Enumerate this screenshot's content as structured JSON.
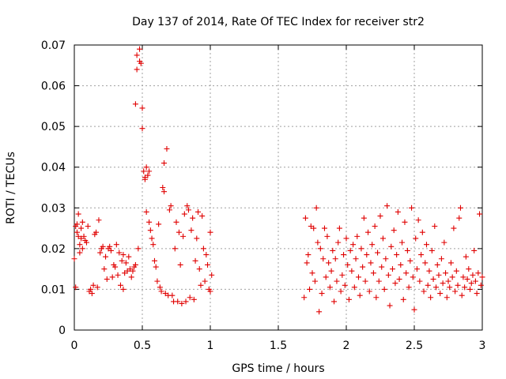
{
  "chart_data": {
    "type": "scatter",
    "title": "Day 137 of 2014, Rate Of TEC Index for receiver str2",
    "xlabel": "GPS time / hours",
    "ylabel": "ROTI / TECUs",
    "xlim": [
      0,
      3
    ],
    "ylim": [
      0,
      0.07
    ],
    "x_ticks": [
      0,
      0.5,
      1,
      1.5,
      2,
      2.5,
      3
    ],
    "x_tick_labels": [
      "0",
      "0.5",
      "1",
      "1.5",
      "2",
      "2.5",
      "3"
    ],
    "y_ticks": [
      0,
      0.01,
      0.02,
      0.03,
      0.04,
      0.05,
      0.06,
      0.07
    ],
    "y_tick_labels": [
      "0",
      "0.01",
      "0.02",
      "0.03",
      "0.04",
      "0.05",
      "0.06",
      "0.07"
    ],
    "grid": true,
    "marker": "plus",
    "color": "#e00000",
    "series": [
      {
        "name": "str2",
        "points": [
          [
            0.0,
            0.0175
          ],
          [
            0.01,
            0.0105
          ],
          [
            0.01,
            0.0255
          ],
          [
            0.02,
            0.026
          ],
          [
            0.02,
            0.024
          ],
          [
            0.03,
            0.0285
          ],
          [
            0.03,
            0.023
          ],
          [
            0.04,
            0.019
          ],
          [
            0.04,
            0.021
          ],
          [
            0.05,
            0.025
          ],
          [
            0.05,
            0.0225
          ],
          [
            0.06,
            0.02
          ],
          [
            0.06,
            0.0265
          ],
          [
            0.07,
            0.023
          ],
          [
            0.08,
            0.022
          ],
          [
            0.09,
            0.0215
          ],
          [
            0.1,
            0.0255
          ],
          [
            0.11,
            0.0095
          ],
          [
            0.12,
            0.01
          ],
          [
            0.13,
            0.009
          ],
          [
            0.14,
            0.011
          ],
          [
            0.15,
            0.0235
          ],
          [
            0.16,
            0.024
          ],
          [
            0.17,
            0.0105
          ],
          [
            0.18,
            0.027
          ],
          [
            0.19,
            0.019
          ],
          [
            0.2,
            0.02
          ],
          [
            0.21,
            0.0205
          ],
          [
            0.22,
            0.015
          ],
          [
            0.23,
            0.018
          ],
          [
            0.24,
            0.0125
          ],
          [
            0.25,
            0.02
          ],
          [
            0.26,
            0.0205
          ],
          [
            0.27,
            0.0195
          ],
          [
            0.28,
            0.013
          ],
          [
            0.29,
            0.016
          ],
          [
            0.3,
            0.0155
          ],
          [
            0.31,
            0.021
          ],
          [
            0.32,
            0.0135
          ],
          [
            0.33,
            0.019
          ],
          [
            0.34,
            0.011
          ],
          [
            0.35,
            0.017
          ],
          [
            0.36,
            0.0185
          ],
          [
            0.36,
            0.01
          ],
          [
            0.37,
            0.014
          ],
          [
            0.38,
            0.0165
          ],
          [
            0.39,
            0.0145
          ],
          [
            0.4,
            0.018
          ],
          [
            0.41,
            0.015
          ],
          [
            0.42,
            0.013
          ],
          [
            0.43,
            0.0145
          ],
          [
            0.44,
            0.0155
          ],
          [
            0.45,
            0.016
          ],
          [
            0.45,
            0.0555
          ],
          [
            0.46,
            0.0675
          ],
          [
            0.46,
            0.064
          ],
          [
            0.47,
            0.02
          ],
          [
            0.48,
            0.066
          ],
          [
            0.48,
            0.069
          ],
          [
            0.49,
            0.0655
          ],
          [
            0.5,
            0.0545
          ],
          [
            0.5,
            0.0495
          ],
          [
            0.51,
            0.039
          ],
          [
            0.52,
            0.037
          ],
          [
            0.52,
            0.0375
          ],
          [
            0.53,
            0.04
          ],
          [
            0.54,
            0.038
          ],
          [
            0.55,
            0.039
          ],
          [
            0.53,
            0.029
          ],
          [
            0.55,
            0.0265
          ],
          [
            0.56,
            0.0245
          ],
          [
            0.57,
            0.0225
          ],
          [
            0.58,
            0.021
          ],
          [
            0.59,
            0.017
          ],
          [
            0.6,
            0.0155
          ],
          [
            0.61,
            0.012
          ],
          [
            0.62,
            0.026
          ],
          [
            0.63,
            0.0105
          ],
          [
            0.64,
            0.0095
          ],
          [
            0.65,
            0.035
          ],
          [
            0.66,
            0.034
          ],
          [
            0.66,
            0.041
          ],
          [
            0.67,
            0.009
          ],
          [
            0.68,
            0.0445
          ],
          [
            0.69,
            0.0085
          ],
          [
            0.7,
            0.0295
          ],
          [
            0.71,
            0.0305
          ],
          [
            0.72,
            0.0085
          ],
          [
            0.73,
            0.007
          ],
          [
            0.74,
            0.02
          ],
          [
            0.75,
            0.0265
          ],
          [
            0.76,
            0.007
          ],
          [
            0.77,
            0.024
          ],
          [
            0.78,
            0.016
          ],
          [
            0.79,
            0.0065
          ],
          [
            0.8,
            0.023
          ],
          [
            0.81,
            0.0285
          ],
          [
            0.82,
            0.007
          ],
          [
            0.83,
            0.0305
          ],
          [
            0.84,
            0.0295
          ],
          [
            0.85,
            0.008
          ],
          [
            0.86,
            0.0245
          ],
          [
            0.87,
            0.0275
          ],
          [
            0.88,
            0.0075
          ],
          [
            0.89,
            0.017
          ],
          [
            0.9,
            0.0225
          ],
          [
            0.91,
            0.029
          ],
          [
            0.92,
            0.015
          ],
          [
            0.93,
            0.011
          ],
          [
            0.94,
            0.028
          ],
          [
            0.95,
            0.02
          ],
          [
            0.96,
            0.012
          ],
          [
            0.97,
            0.0185
          ],
          [
            0.98,
            0.016
          ],
          [
            0.99,
            0.01
          ],
          [
            1.0,
            0.024
          ],
          [
            1.0,
            0.0095
          ],
          [
            1.01,
            0.0135
          ],
          [
            1.69,
            0.008
          ],
          [
            1.7,
            0.0275
          ],
          [
            1.71,
            0.0165
          ],
          [
            1.72,
            0.0185
          ],
          [
            1.73,
            0.01
          ],
          [
            1.74,
            0.0255
          ],
          [
            1.75,
            0.014
          ],
          [
            1.76,
            0.025
          ],
          [
            1.77,
            0.012
          ],
          [
            1.78,
            0.03
          ],
          [
            1.79,
            0.0215
          ],
          [
            1.8,
            0.0045
          ],
          [
            1.81,
            0.02
          ],
          [
            1.82,
            0.009
          ],
          [
            1.83,
            0.0175
          ],
          [
            1.84,
            0.025
          ],
          [
            1.85,
            0.013
          ],
          [
            1.86,
            0.023
          ],
          [
            1.87,
            0.0165
          ],
          [
            1.88,
            0.0105
          ],
          [
            1.89,
            0.0145
          ],
          [
            1.9,
            0.0195
          ],
          [
            1.91,
            0.007
          ],
          [
            1.92,
            0.0175
          ],
          [
            1.93,
            0.012
          ],
          [
            1.94,
            0.0215
          ],
          [
            1.95,
            0.025
          ],
          [
            1.96,
            0.0095
          ],
          [
            1.97,
            0.0135
          ],
          [
            1.98,
            0.0185
          ],
          [
            1.99,
            0.011
          ],
          [
            2.0,
            0.0225
          ],
          [
            2.01,
            0.016
          ],
          [
            2.02,
            0.0075
          ],
          [
            2.03,
            0.0195
          ],
          [
            2.04,
            0.0145
          ],
          [
            2.05,
            0.021
          ],
          [
            2.06,
            0.0105
          ],
          [
            2.07,
            0.0175
          ],
          [
            2.08,
            0.023
          ],
          [
            2.09,
            0.013
          ],
          [
            2.1,
            0.0085
          ],
          [
            2.11,
            0.02
          ],
          [
            2.12,
            0.0155
          ],
          [
            2.13,
            0.0275
          ],
          [
            2.14,
            0.012
          ],
          [
            2.15,
            0.0185
          ],
          [
            2.16,
            0.024
          ],
          [
            2.17,
            0.0095
          ],
          [
            2.18,
            0.0165
          ],
          [
            2.19,
            0.021
          ],
          [
            2.2,
            0.014
          ],
          [
            2.21,
            0.0255
          ],
          [
            2.22,
            0.008
          ],
          [
            2.23,
            0.019
          ],
          [
            2.24,
            0.012
          ],
          [
            2.25,
            0.028
          ],
          [
            2.26,
            0.0155
          ],
          [
            2.27,
            0.0225
          ],
          [
            2.28,
            0.01
          ],
          [
            2.29,
            0.0175
          ],
          [
            2.3,
            0.0305
          ],
          [
            2.31,
            0.0135
          ],
          [
            2.32,
            0.006
          ],
          [
            2.33,
            0.0205
          ],
          [
            2.34,
            0.015
          ],
          [
            2.35,
            0.0245
          ],
          [
            2.36,
            0.0115
          ],
          [
            2.37,
            0.0185
          ],
          [
            2.38,
            0.029
          ],
          [
            2.39,
            0.0125
          ],
          [
            2.4,
            0.016
          ],
          [
            2.41,
            0.0215
          ],
          [
            2.42,
            0.0075
          ],
          [
            2.43,
            0.0265
          ],
          [
            2.44,
            0.014
          ],
          [
            2.45,
            0.0195
          ],
          [
            2.46,
            0.0105
          ],
          [
            2.47,
            0.017
          ],
          [
            2.48,
            0.03
          ],
          [
            2.49,
            0.013
          ],
          [
            2.5,
            0.005
          ],
          [
            2.51,
            0.0225
          ],
          [
            2.52,
            0.015
          ],
          [
            2.53,
            0.027
          ],
          [
            2.54,
            0.012
          ],
          [
            2.55,
            0.0185
          ],
          [
            2.56,
            0.024
          ],
          [
            2.57,
            0.0095
          ],
          [
            2.58,
            0.0165
          ],
          [
            2.59,
            0.021
          ],
          [
            2.6,
            0.011
          ],
          [
            2.61,
            0.0145
          ],
          [
            2.62,
            0.008
          ],
          [
            2.63,
            0.0195
          ],
          [
            2.64,
            0.0125
          ],
          [
            2.65,
            0.0255
          ],
          [
            2.66,
            0.0105
          ],
          [
            2.67,
            0.016
          ],
          [
            2.68,
            0.0135
          ],
          [
            2.69,
            0.009
          ],
          [
            2.7,
            0.0175
          ],
          [
            2.71,
            0.0115
          ],
          [
            2.72,
            0.0215
          ],
          [
            2.73,
            0.014
          ],
          [
            2.74,
            0.008
          ],
          [
            2.75,
            0.012
          ],
          [
            2.76,
            0.0105
          ],
          [
            2.77,
            0.0165
          ],
          [
            2.78,
            0.013
          ],
          [
            2.79,
            0.025
          ],
          [
            2.8,
            0.0095
          ],
          [
            2.81,
            0.0145
          ],
          [
            2.82,
            0.011
          ],
          [
            2.83,
            0.0275
          ],
          [
            2.84,
            0.03
          ],
          [
            2.85,
            0.0085
          ],
          [
            2.86,
            0.013
          ],
          [
            2.87,
            0.0105
          ],
          [
            2.88,
            0.018
          ],
          [
            2.89,
            0.0125
          ],
          [
            2.9,
            0.015
          ],
          [
            2.91,
            0.01
          ],
          [
            2.92,
            0.0115
          ],
          [
            2.93,
            0.0135
          ],
          [
            2.94,
            0.0195
          ],
          [
            2.95,
            0.012
          ],
          [
            2.96,
            0.009
          ],
          [
            2.97,
            0.014
          ],
          [
            2.98,
            0.0285
          ],
          [
            2.99,
            0.011
          ],
          [
            3.0,
            0.013
          ]
        ]
      }
    ]
  }
}
